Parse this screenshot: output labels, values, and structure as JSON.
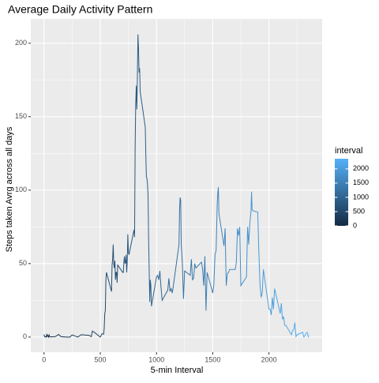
{
  "chart_data": {
    "type": "line",
    "title": "Average Daily Activity Pattern",
    "xlabel": "5-min Interval",
    "ylabel": "Steps taken Avrg across all days",
    "x": [
      0,
      5,
      10,
      15,
      20,
      25,
      30,
      35,
      40,
      45,
      50,
      55,
      100,
      130,
      150,
      200,
      230,
      250,
      300,
      330,
      400,
      420,
      430,
      440,
      450,
      500,
      515,
      530,
      535,
      540,
      545,
      550,
      555,
      600,
      605,
      610,
      615,
      620,
      625,
      630,
      635,
      640,
      645,
      650,
      655,
      700,
      705,
      710,
      715,
      720,
      725,
      730,
      735,
      740,
      745,
      750,
      755,
      800,
      805,
      810,
      815,
      820,
      825,
      830,
      835,
      840,
      845,
      850,
      855,
      900,
      905,
      910,
      915,
      920,
      925,
      930,
      935,
      940,
      945,
      950,
      955,
      1000,
      1010,
      1020,
      1030,
      1040,
      1050,
      1100,
      1110,
      1120,
      1130,
      1140,
      1150,
      1200,
      1205,
      1210,
      1215,
      1220,
      1230,
      1240,
      1250,
      1300,
      1310,
      1320,
      1330,
      1340,
      1350,
      1400,
      1410,
      1420,
      1430,
      1440,
      1450,
      1500,
      1510,
      1520,
      1530,
      1540,
      1545,
      1550,
      1555,
      1600,
      1610,
      1620,
      1630,
      1640,
      1650,
      1700,
      1710,
      1720,
      1730,
      1740,
      1750,
      1800,
      1810,
      1820,
      1830,
      1840,
      1845,
      1850,
      1855,
      1900,
      1910,
      1920,
      1930,
      1940,
      1950,
      2000,
      2010,
      2020,
      2030,
      2040,
      2050,
      2100,
      2110,
      2120,
      2130,
      2140,
      2150,
      2200,
      2210,
      2220,
      2230,
      2240,
      2250,
      2300,
      2310,
      2320,
      2330,
      2340,
      2350,
      2355
    ],
    "values": [
      1.7,
      0.3,
      0.1,
      0.2,
      0,
      2.1,
      0.5,
      0.9,
      0,
      1.5,
      0.3,
      0.1,
      0.3,
      1.8,
      0.3,
      0,
      0,
      1.5,
      0,
      1.6,
      1.2,
      0.3,
      4.1,
      3.5,
      3.1,
      0,
      2.2,
      2,
      6,
      16,
      18,
      39,
      44,
      31,
      49,
      53,
      63,
      50,
      47,
      52,
      39,
      44,
      44,
      37,
      49,
      44,
      44,
      51,
      55,
      50,
      51,
      56,
      44,
      52,
      70,
      58,
      56,
      73,
      68,
      129,
      158,
      171,
      155,
      177,
      206,
      196,
      180,
      183,
      167,
      143,
      124,
      109,
      108,
      104,
      96,
      66,
      45,
      24,
      39,
      35,
      21,
      41,
      42,
      39,
      45,
      34,
      25,
      32,
      40,
      31,
      33,
      30,
      35,
      63,
      87,
      95,
      93,
      63,
      50,
      26,
      45,
      42,
      53,
      39,
      40,
      50,
      47,
      51,
      46,
      35,
      55,
      18,
      44,
      30,
      36,
      56,
      59,
      91,
      98,
      102,
      84,
      62,
      74,
      35,
      43,
      44,
      46,
      46,
      51,
      74,
      69,
      75,
      35,
      41,
      75,
      63,
      78,
      85,
      99,
      87,
      86,
      85,
      58,
      36,
      27,
      30,
      46,
      19,
      19,
      15,
      27,
      19,
      33,
      16,
      23,
      12,
      14,
      8,
      8,
      1.6,
      4.6,
      5,
      9.8,
      0.3,
      1.6,
      3.3,
      0,
      1,
      2.6,
      3.3,
      0.2,
      1.1
    ],
    "xlim": [
      -117.75,
      2472.75
    ],
    "xticks": [
      0,
      500,
      1000,
      1500,
      2000
    ],
    "xminor": [
      250,
      750,
      1250,
      1750,
      2250
    ],
    "ylim": [
      -10.3,
      216.5
    ],
    "yticks": [
      0,
      50,
      100,
      150,
      200
    ],
    "yminor": [
      25,
      75,
      125,
      175
    ],
    "grid": true,
    "color_low": "#132B43",
    "color_high": "#56B1F7",
    "legend": {
      "title": "interval",
      "range": [
        0,
        2355
      ],
      "ticks": [
        0,
        500,
        1000,
        1500,
        2000
      ]
    }
  }
}
